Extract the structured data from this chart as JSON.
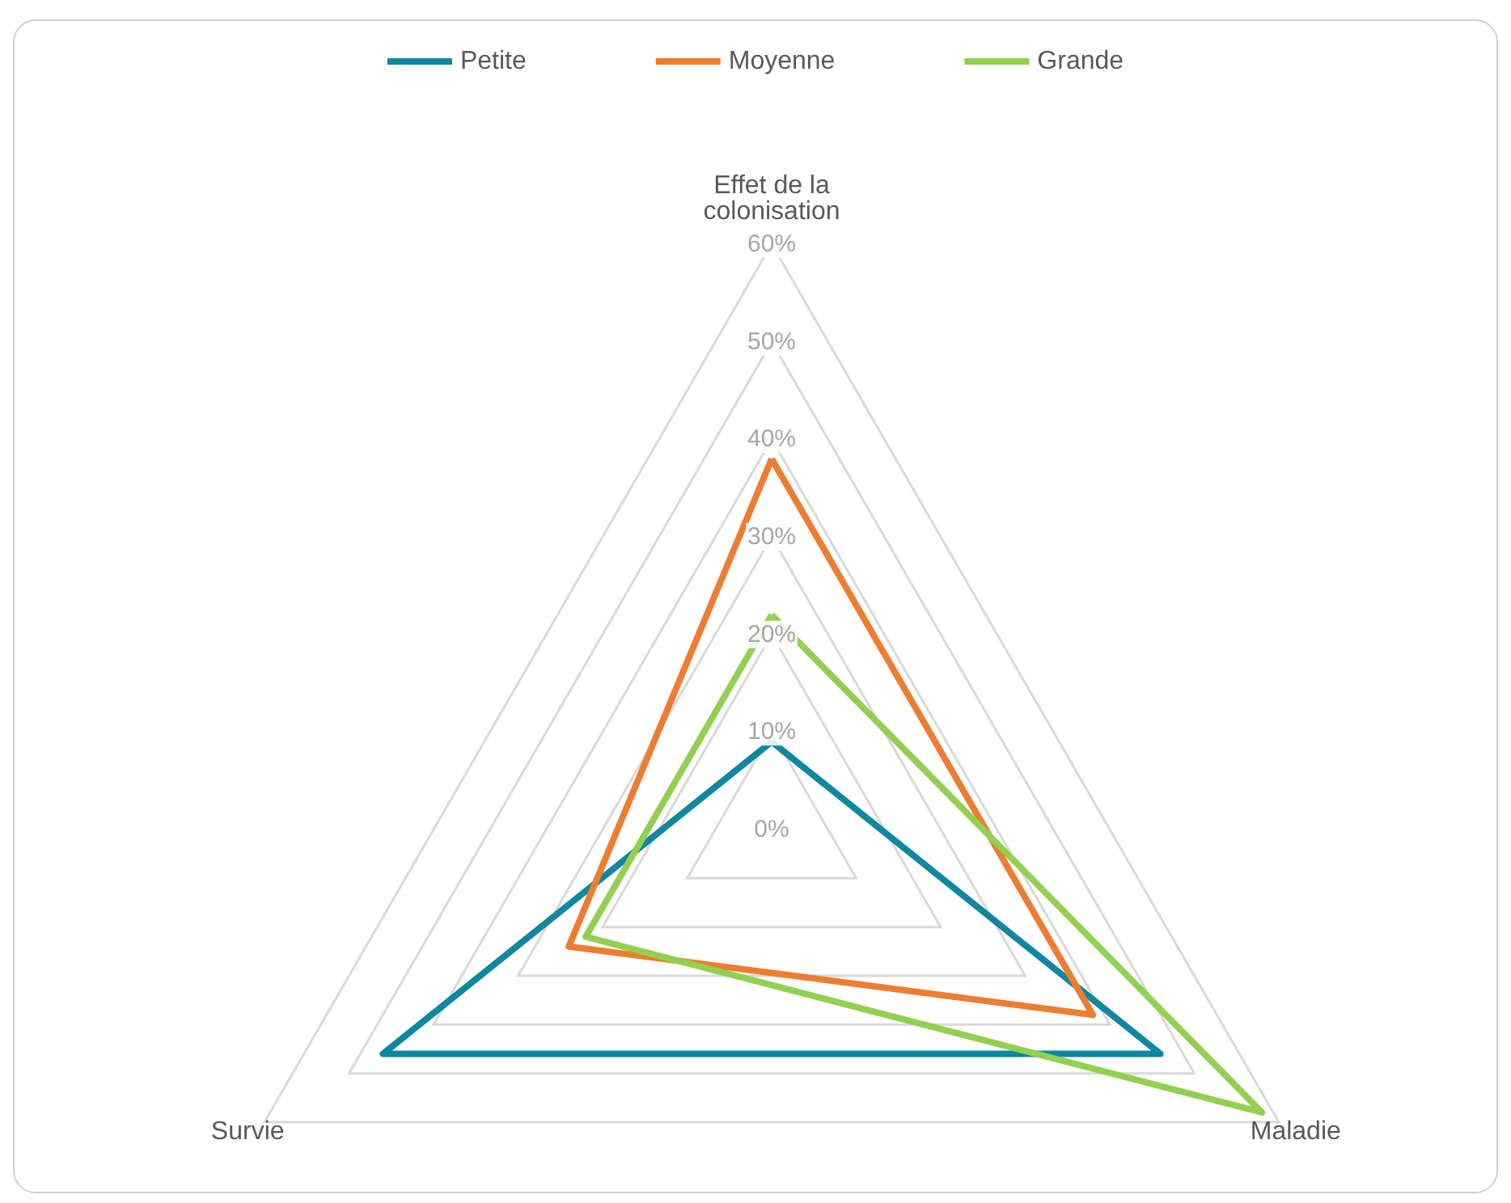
{
  "chart_data": {
    "type": "radar",
    "categories": [
      "Effet de la colonisation",
      "Maladie",
      "Survie"
    ],
    "series": [
      {
        "name": "Petite",
        "color": "#0e87a0",
        "values": [
          9,
          46,
          46
        ]
      },
      {
        "name": "Moyenne",
        "color": "#ed7d31",
        "values": [
          38,
          38,
          24
        ]
      },
      {
        "name": "Grande",
        "color": "#92d050",
        "values": [
          22,
          58,
          22
        ]
      }
    ],
    "ylim": [
      0,
      60
    ],
    "yticks": [
      {
        "value": 0,
        "label": "0%"
      },
      {
        "value": 10,
        "label": "10%"
      },
      {
        "value": 20,
        "label": "20%"
      },
      {
        "value": 30,
        "label": "30%"
      },
      {
        "value": 40,
        "label": "40%"
      },
      {
        "value": 50,
        "label": "50%"
      },
      {
        "value": 60,
        "label": "60%"
      }
    ],
    "grid": true,
    "legend": "top",
    "marker": "none",
    "line_style": "solid"
  }
}
